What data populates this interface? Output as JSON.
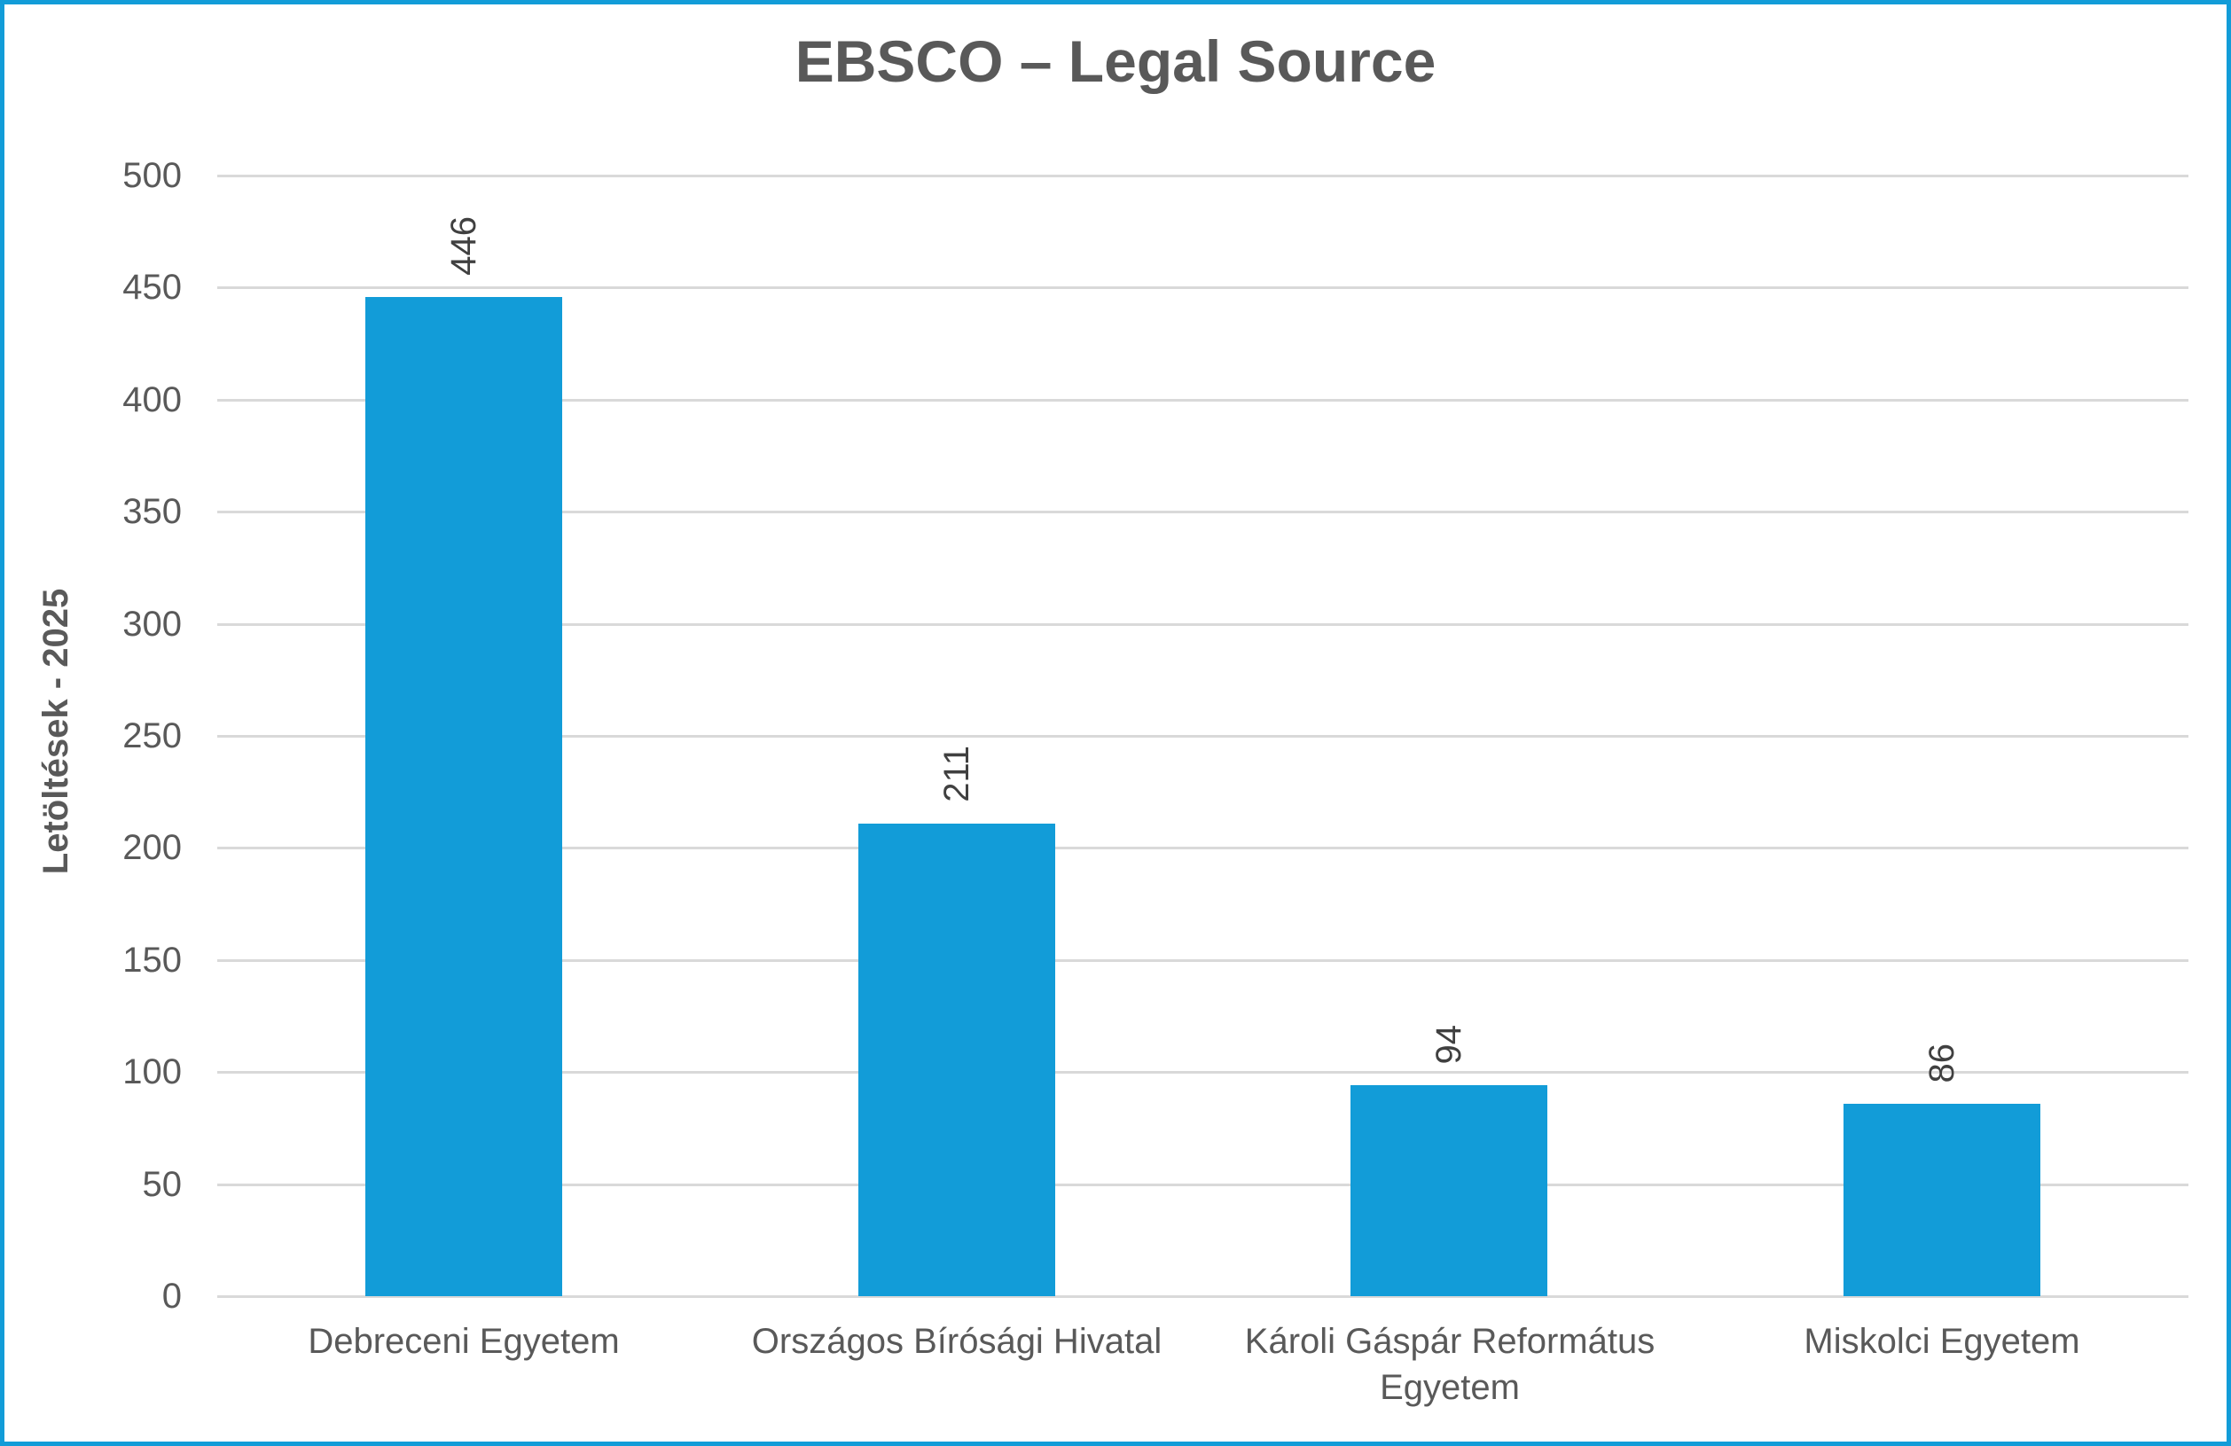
{
  "chart_data": {
    "type": "bar",
    "title": "EBSCO – Legal Source",
    "categories": [
      "Debreceni Egyetem",
      "Országos Bírósági Hivatal",
      "Károli Gáspár Református Egyetem",
      "Miskolci Egyetem"
    ],
    "values": [
      446,
      211,
      94,
      86
    ],
    "value_labels": [
      "446",
      "211",
      "94",
      "86"
    ],
    "xlabel": "",
    "ylabel": "Letöltések - 2025",
    "ylim": [
      0,
      500
    ],
    "ytick_step": 50,
    "yticks": [
      "0",
      "50",
      "100",
      "150",
      "200",
      "250",
      "300",
      "350",
      "400",
      "450",
      "500"
    ],
    "grid": true,
    "legend": false,
    "value_labels_rotated": true,
    "colors": {
      "bar": "#129CD8",
      "frame_border": "#129CD8",
      "gridline": "#D9D9D9",
      "title_text": "#595959",
      "axis_text": "#595959",
      "value_label_text": "#404040"
    }
  }
}
